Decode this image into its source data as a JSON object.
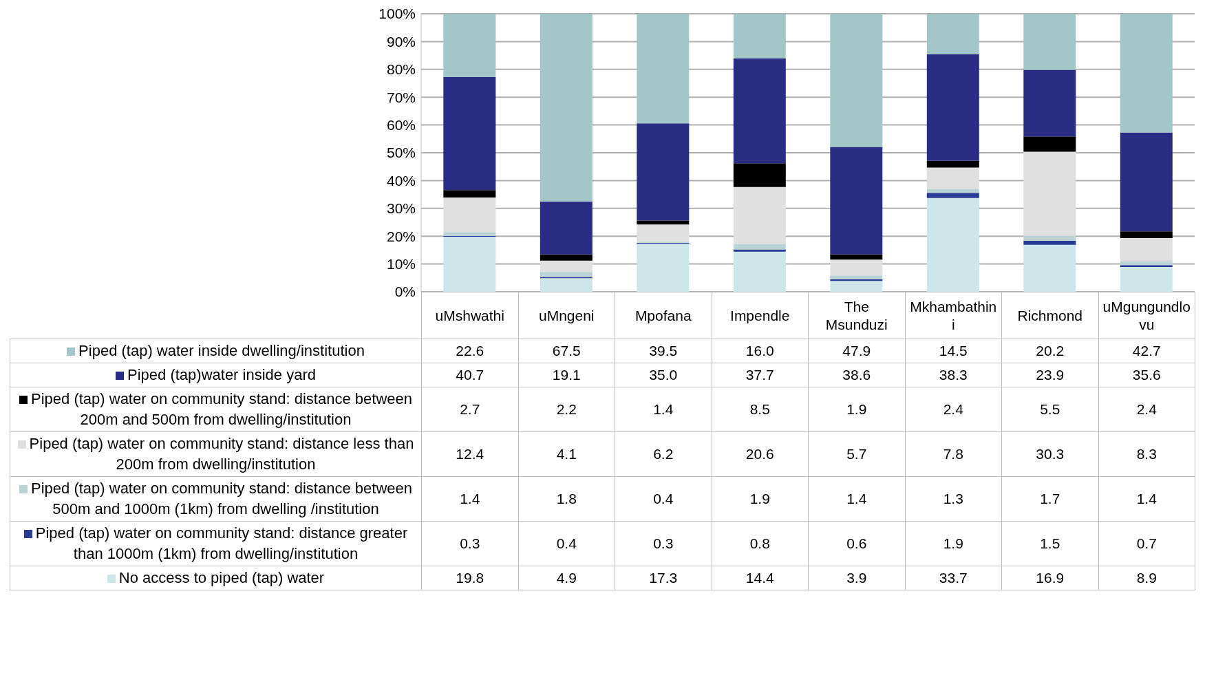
{
  "chart_data": {
    "type": "bar",
    "stacked": true,
    "legend": "bottom",
    "grid": "y",
    "categories": [
      "uMshwathi",
      "uMngeni",
      "Mpofana",
      "Impendle",
      "The Msunduzi",
      "Mkhambathini",
      "Richmond",
      "uMgungundlovu"
    ],
    "ylim": [
      0,
      100
    ],
    "yticks": [
      {
        "value": 0,
        "label": "0%"
      },
      {
        "value": 10,
        "label": "10%"
      },
      {
        "value": 20,
        "label": "20%"
      },
      {
        "value": 30,
        "label": "30%"
      },
      {
        "value": 40,
        "label": "40%"
      },
      {
        "value": 50,
        "label": "50%"
      },
      {
        "value": 60,
        "label": "60%"
      },
      {
        "value": 70,
        "label": "70%"
      },
      {
        "value": 80,
        "label": "80%"
      },
      {
        "value": 90,
        "label": "90%"
      },
      {
        "value": 100,
        "label": "100%"
      }
    ],
    "series": [
      {
        "name": "No access to piped (tap) water",
        "color": "#cce6ea",
        "values": [
          19.8,
          4.9,
          17.3,
          14.4,
          3.9,
          33.7,
          16.9,
          8.9
        ],
        "value_labels": [
          "19.8",
          "4.9",
          "17.3",
          "14.4",
          "3.9",
          "33.7",
          "16.9",
          "8.9"
        ]
      },
      {
        "name": "Piped (tap) water on community stand: distance greater than 1000m (1km) from dwelling/institution",
        "color": "#283c96",
        "values": [
          0.3,
          0.4,
          0.3,
          0.8,
          0.6,
          1.9,
          1.5,
          0.7
        ],
        "value_labels": [
          "0.3",
          "0.4",
          "0.3",
          "0.8",
          "0.6",
          "1.9",
          "1.5",
          "0.7"
        ]
      },
      {
        "name": "Piped (tap) water on community stand: distance between 500m and 1000m (1km) from dwelling /institution",
        "color": "#bcd3d6",
        "values": [
          1.4,
          1.8,
          0.4,
          1.9,
          1.4,
          1.3,
          1.7,
          1.4
        ],
        "value_labels": [
          "1.4",
          "1.8",
          "0.4",
          "1.9",
          "1.4",
          "1.3",
          "1.7",
          "1.4"
        ]
      },
      {
        "name": "Piped (tap) water on community stand: distance less than 200m from dwelling/institution",
        "color": "#e0e0e0",
        "values": [
          12.4,
          4.1,
          6.2,
          20.6,
          5.7,
          7.8,
          30.3,
          8.3
        ],
        "value_labels": [
          "12.4",
          "4.1",
          "6.2",
          "20.6",
          "5.7",
          "7.8",
          "30.3",
          "8.3"
        ]
      },
      {
        "name": "Piped (tap) water on community stand: distance between 200m and 500m from dwelling/institution",
        "color": "#000000",
        "values": [
          2.7,
          2.2,
          1.4,
          8.5,
          1.9,
          2.4,
          5.5,
          2.4
        ],
        "value_labels": [
          "2.7",
          "2.2",
          "1.4",
          "8.5",
          "1.9",
          "2.4",
          "5.5",
          "2.4"
        ]
      },
      {
        "name": "Piped (tap)water inside yard",
        "color": "#2b2d84",
        "values": [
          40.7,
          19.1,
          35.0,
          37.7,
          38.6,
          38.3,
          23.9,
          35.6
        ],
        "value_labels": [
          "40.7",
          "19.1",
          "35.0",
          "37.7",
          "38.6",
          "38.3",
          "23.9",
          "35.6"
        ]
      },
      {
        "name": "Piped (tap) water inside dwelling/institution",
        "color": "#a3c6c9",
        "values": [
          22.6,
          67.5,
          39.5,
          16.0,
          47.9,
          14.5,
          20.2,
          42.7
        ],
        "value_labels": [
          "22.6",
          "67.5",
          "39.5",
          "16.0",
          "47.9",
          "14.5",
          "20.2",
          "42.7"
        ]
      }
    ]
  }
}
